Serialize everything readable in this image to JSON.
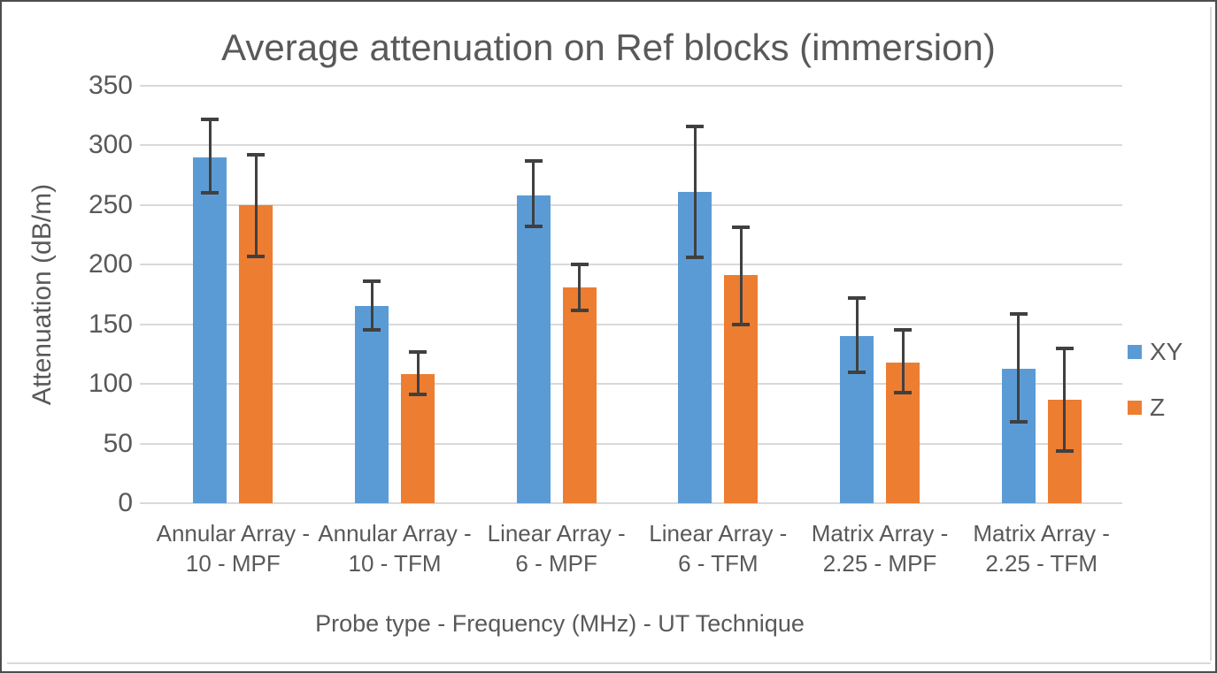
{
  "chart_data": {
    "type": "bar",
    "title": "Average attenuation on Ref blocks (immersion)",
    "xlabel": "Probe type - Frequency (MHz) - UT Technique",
    "ylabel": "Attenuation (dB/m)",
    "ylim": [
      0,
      350
    ],
    "yticks": [
      0,
      50,
      100,
      150,
      200,
      250,
      300,
      350
    ],
    "grid": true,
    "legend_position": "right",
    "categories": [
      "Annular Array - 10 - MPF",
      "Annular Array - 10 - TFM",
      "Linear Array - 6 - MPF",
      "Linear Array - 6 - TFM",
      "Matrix Array - 2.25 - MPF",
      "Matrix Array - 2.25 - TFM"
    ],
    "series": [
      {
        "name": "XY",
        "color": "#5B9BD5",
        "values": [
          290,
          165,
          258,
          261,
          140,
          113
        ],
        "error_low": [
          260,
          145,
          232,
          206,
          110,
          68
        ],
        "error_high": [
          322,
          186,
          287,
          316,
          172,
          159
        ]
      },
      {
        "name": "Z",
        "color": "#ED7D31",
        "values": [
          250,
          108,
          181,
          191,
          118,
          87
        ],
        "error_low": [
          207,
          91,
          162,
          150,
          93,
          44
        ],
        "error_high": [
          292,
          127,
          200,
          231,
          145,
          130
        ]
      }
    ],
    "error_bar_color": "#404040",
    "gridline_color": "#D9D9D9",
    "text_color": "#595959",
    "background": "#FFFFFF"
  }
}
